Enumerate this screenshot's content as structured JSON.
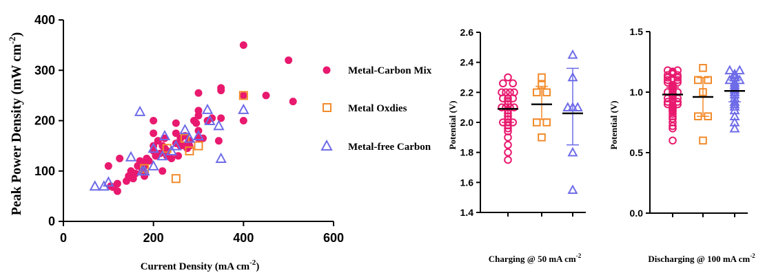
{
  "colors": {
    "metal_carbon": "#E8196E",
    "metal_oxides": "#F28A2A",
    "metal_free": "#6E6BE8",
    "axis": "#000000",
    "mean_line": "#000000"
  },
  "chart_data": [
    {
      "type": "scatter",
      "xlabel": "Current Density (mA cm",
      "xlabel_sup": "-2",
      "xlabel_end": ")",
      "ylabel": "Peak Power Density (mW cm",
      "ylabel_sup": "-2",
      "ylabel_end": ")",
      "xlim": [
        0,
        600
      ],
      "ylim": [
        0,
        400
      ],
      "xticks": [
        "0",
        "200",
        "400",
        "600"
      ],
      "yticks": [
        "0",
        "100",
        "200",
        "300",
        "400"
      ],
      "legend_position": "right",
      "series": [
        {
          "name": "Metal-Carbon Mix",
          "marker": "filled-circle",
          "points": [
            [
              100,
              110
            ],
            [
              105,
              70
            ],
            [
              110,
              68
            ],
            [
              120,
              60
            ],
            [
              120,
              75
            ],
            [
              125,
              125
            ],
            [
              140,
              80
            ],
            [
              145,
              90
            ],
            [
              150,
              100
            ],
            [
              155,
              85
            ],
            [
              160,
              95
            ],
            [
              165,
              110
            ],
            [
              170,
              120
            ],
            [
              175,
              115
            ],
            [
              175,
              100
            ],
            [
              180,
              90
            ],
            [
              180,
              110
            ],
            [
              185,
              125
            ],
            [
              190,
              120
            ],
            [
              200,
              175
            ],
            [
              200,
              140
            ],
            [
              200,
              200
            ],
            [
              200,
              150
            ],
            [
              205,
              130
            ],
            [
              210,
              160
            ],
            [
              215,
              135
            ],
            [
              220,
              150
            ],
            [
              220,
              100
            ],
            [
              225,
              145
            ],
            [
              225,
              165
            ],
            [
              230,
              140
            ],
            [
              230,
              130
            ],
            [
              240,
              125
            ],
            [
              250,
              155
            ],
            [
              250,
              175
            ],
            [
              250,
              195
            ],
            [
              255,
              130
            ],
            [
              260,
              150
            ],
            [
              260,
              165
            ],
            [
              270,
              170
            ],
            [
              270,
              150
            ],
            [
              275,
              145
            ],
            [
              280,
              160
            ],
            [
              280,
              150
            ],
            [
              290,
              200
            ],
            [
              295,
              195
            ],
            [
              300,
              210
            ],
            [
              300,
              180
            ],
            [
              300,
              255
            ],
            [
              300,
              165
            ],
            [
              300,
              220
            ],
            [
              310,
              165
            ],
            [
              320,
              200
            ],
            [
              330,
              205
            ],
            [
              345,
              160
            ],
            [
              350,
              260
            ],
            [
              350,
              265
            ],
            [
              350,
              205
            ],
            [
              400,
              350
            ],
            [
              400,
              250
            ],
            [
              400,
              200
            ],
            [
              450,
              250
            ],
            [
              500,
              320
            ],
            [
              510,
              238
            ]
          ]
        },
        {
          "name": "Metal Oxdies",
          "marker": "open-square",
          "points": [
            [
              250,
              85
            ],
            [
              270,
              165
            ],
            [
              280,
              140
            ],
            [
              400,
              250
            ],
            [
              300,
              150
            ],
            [
              180,
              105
            ],
            [
              230,
              145
            ]
          ]
        },
        {
          "name": "Metal-free Carbon",
          "marker": "open-triangle",
          "points": [
            [
              70,
              70
            ],
            [
              90,
              70
            ],
            [
              100,
              78
            ],
            [
              150,
              128
            ],
            [
              170,
              218
            ],
            [
              175,
              100
            ],
            [
              180,
              100
            ],
            [
              200,
              110
            ],
            [
              200,
              145
            ],
            [
              220,
              130
            ],
            [
              225,
              170
            ],
            [
              240,
              140
            ],
            [
              250,
              150
            ],
            [
              270,
              182
            ],
            [
              280,
              165
            ],
            [
              300,
              170
            ],
            [
              320,
              222
            ],
            [
              325,
              200
            ],
            [
              345,
              190
            ],
            [
              350,
              125
            ],
            [
              400,
              222
            ]
          ]
        }
      ]
    },
    {
      "type": "scatter",
      "xlabel": "Charging @ 50 mA cm",
      "xlabel_sup": "-2",
      "ylabel": "Potential (V)",
      "ylim": [
        1.4,
        2.6
      ],
      "yticks": [
        "1.4",
        "1.6",
        "1.8",
        "2.0",
        "2.2",
        "2.4",
        "2.6"
      ],
      "groups": [
        {
          "series": "Metal-Carbon Mix",
          "marker": "open-circle",
          "mean": 2.09,
          "err_low": 2.0,
          "err_high": 2.18,
          "values": [
            2.3,
            2.26,
            2.26,
            2.2,
            2.2,
            2.2,
            2.2,
            2.16,
            2.16,
            2.16,
            2.14,
            2.12,
            2.1,
            2.1,
            2.1,
            2.1,
            2.08,
            2.06,
            2.04,
            2.02,
            2.0,
            2.0,
            2.0,
            1.98,
            1.96,
            1.94,
            1.9,
            1.85,
            1.8,
            1.75
          ]
        },
        {
          "series": "Metal Oxdies",
          "marker": "open-square",
          "mean": 2.12,
          "err_low": 2.02,
          "err_high": 2.24,
          "values": [
            2.3,
            2.25,
            2.2,
            2.2,
            2.0,
            2.0,
            1.9
          ]
        },
        {
          "series": "Metal-free Carbon",
          "marker": "open-triangle",
          "mean": 2.06,
          "err_low": 1.85,
          "err_high": 2.36,
          "values": [
            2.45,
            2.3,
            2.1,
            2.1,
            2.1,
            1.8,
            1.55
          ]
        }
      ]
    },
    {
      "type": "scatter",
      "xlabel": "Discharging @ 100 mA cm",
      "xlabel_sup": "-2",
      "ylabel": "Potential (V)",
      "ylim": [
        0.0,
        1.5
      ],
      "yticks": [
        "0.0",
        "0.5",
        "1.0",
        "1.5"
      ],
      "groups": [
        {
          "series": "Metal-Carbon Mix",
          "marker": "open-circle",
          "mean": 0.98,
          "err_low": 0.92,
          "err_high": 1.04,
          "values": [
            1.18,
            1.18,
            1.17,
            1.16,
            1.15,
            1.14,
            1.14,
            1.12,
            1.12,
            1.1,
            1.1,
            1.08,
            1.08,
            1.06,
            1.05,
            1.04,
            1.03,
            1.02,
            1.01,
            1.0,
            1.0,
            0.99,
            0.98,
            0.97,
            0.96,
            0.95,
            0.95,
            0.94,
            0.93,
            0.92,
            0.92,
            0.9,
            0.9,
            0.89,
            0.88,
            0.87,
            0.86,
            0.85,
            0.84,
            0.82,
            0.8,
            0.78,
            0.75,
            0.72,
            0.7,
            0.6
          ]
        },
        {
          "series": "Metal Oxdies",
          "marker": "open-square",
          "mean": 0.96,
          "err_low": 0.8,
          "err_high": 1.12,
          "values": [
            1.2,
            1.1,
            1.1,
            1.0,
            0.8,
            0.8,
            0.6
          ]
        },
        {
          "series": "Metal-free Carbon",
          "marker": "open-triangle",
          "mean": 1.01,
          "err_low": 0.92,
          "err_high": 1.1,
          "values": [
            1.18,
            1.18,
            1.15,
            1.14,
            1.12,
            1.1,
            1.1,
            1.08,
            1.06,
            1.04,
            1.02,
            1.0,
            0.98,
            0.95,
            0.92,
            0.9,
            0.88,
            0.85,
            0.8,
            0.75,
            0.7
          ]
        }
      ]
    }
  ]
}
